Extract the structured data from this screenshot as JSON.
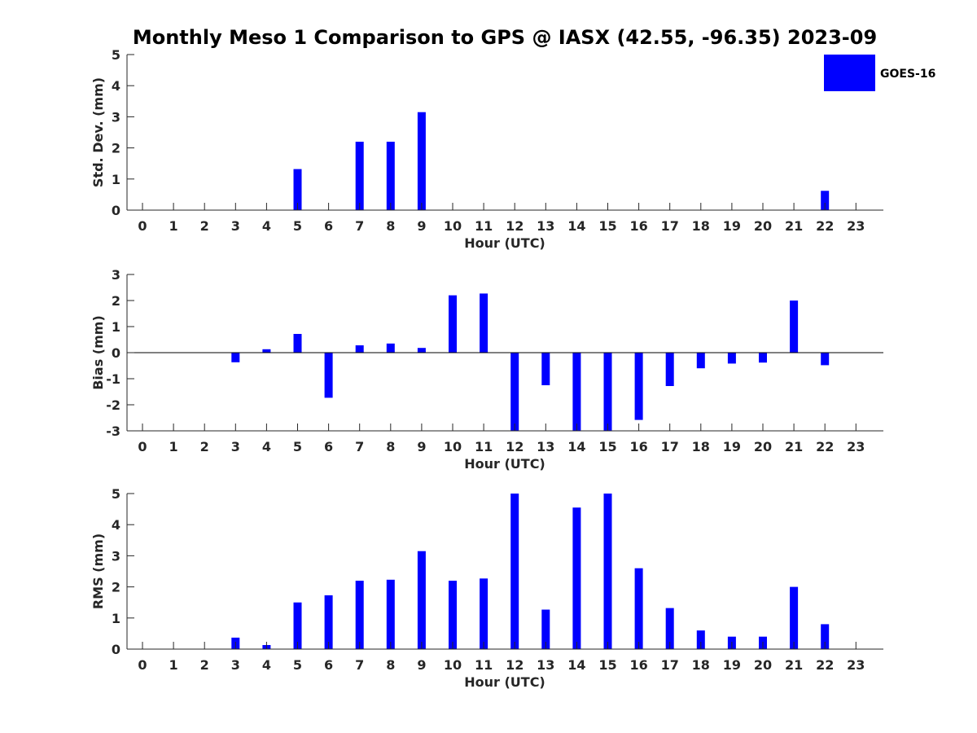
{
  "title": "Monthly Meso 1 Comparison to GPS @ IASX (42.55, -96.35) 2023-09",
  "legend": {
    "label": "GOES-16",
    "color": "#0000ff",
    "placement": "top-right"
  },
  "chart_data": [
    {
      "type": "bar",
      "ylabel": "Std. Dev. (mm)",
      "xlabel": "Hour (UTC)",
      "ylim": [
        0,
        5
      ],
      "yticks": [
        0,
        1,
        2,
        3,
        4,
        5
      ],
      "categories": [
        "0",
        "1",
        "2",
        "3",
        "4",
        "5",
        "6",
        "7",
        "8",
        "9",
        "10",
        "11",
        "12",
        "13",
        "14",
        "15",
        "16",
        "17",
        "18",
        "19",
        "20",
        "21",
        "22",
        "23"
      ],
      "values": [
        null,
        null,
        null,
        0,
        0,
        1.32,
        0,
        2.2,
        2.2,
        3.15,
        0,
        0,
        0,
        0,
        0,
        0,
        0,
        0,
        0,
        0,
        0,
        0,
        0.62,
        null
      ],
      "grid": false
    },
    {
      "type": "bar",
      "ylabel": "Bias (mm)",
      "xlabel": "Hour (UTC)",
      "ylim": [
        -3,
        3
      ],
      "yticks": [
        -3,
        -2,
        -1,
        0,
        1,
        2,
        3
      ],
      "categories": [
        "0",
        "1",
        "2",
        "3",
        "4",
        "5",
        "6",
        "7",
        "8",
        "9",
        "10",
        "11",
        "12",
        "13",
        "14",
        "15",
        "16",
        "17",
        "18",
        "19",
        "20",
        "21",
        "22",
        "23"
      ],
      "values": [
        null,
        null,
        null,
        -0.37,
        0.13,
        0.72,
        -1.73,
        0.28,
        0.35,
        0.18,
        2.2,
        2.27,
        -3.0,
        -1.25,
        -3.0,
        -3.0,
        -2.58,
        -1.28,
        -0.6,
        -0.42,
        -0.38,
        2.0,
        -0.48,
        null
      ],
      "grid": false
    },
    {
      "type": "bar",
      "ylabel": "RMS (mm)",
      "xlabel": "Hour (UTC)",
      "ylim": [
        0,
        5
      ],
      "yticks": [
        0,
        1,
        2,
        3,
        4,
        5
      ],
      "categories": [
        "0",
        "1",
        "2",
        "3",
        "4",
        "5",
        "6",
        "7",
        "8",
        "9",
        "10",
        "11",
        "12",
        "13",
        "14",
        "15",
        "16",
        "17",
        "18",
        "19",
        "20",
        "21",
        "22",
        "23"
      ],
      "values": [
        null,
        null,
        null,
        0.37,
        0.13,
        1.5,
        1.73,
        2.2,
        2.23,
        3.15,
        2.2,
        2.27,
        5.0,
        1.27,
        4.55,
        5.0,
        2.6,
        1.32,
        0.6,
        0.4,
        0.4,
        2.0,
        0.8,
        null
      ],
      "grid": false
    }
  ]
}
